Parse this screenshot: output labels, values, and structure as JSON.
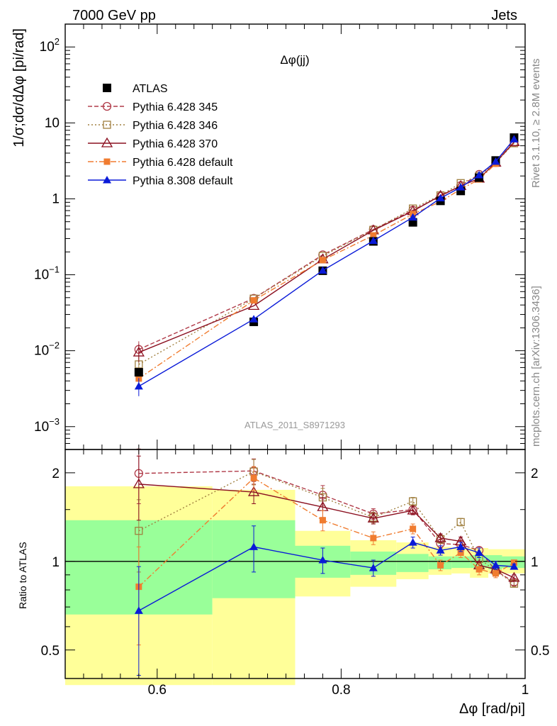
{
  "header": {
    "left": "7000 GeV pp",
    "right": "Jets"
  },
  "side_text": {
    "rivet": "Rivet 3.1.10, ≥ 2.8M events",
    "mcplots": "mcplots.cern.ch [arXiv:1306.3436]"
  },
  "colors": {
    "data": "#000000",
    "p345": "#b03a48",
    "p346": "#a08040",
    "p370": "#8b1020",
    "p6def": "#f07c30",
    "p8": "#0a1ad8",
    "band_green": "#99ff99",
    "band_yellow": "#ffff99"
  },
  "chart_data": [
    {
      "type": "line",
      "title": "Δφ(jj)",
      "watermark": "ATLAS_2011_S8971293",
      "xlabel": "",
      "ylabel": "1/σ;dσ/dΔφ [pi/rad]",
      "xlim": [
        0.5,
        1.0
      ],
      "ylim": [
        0.0005,
        200
      ],
      "yscale": "log",
      "y_ticks": [
        {
          "v": 0.001,
          "base": "10",
          "exp": "−3"
        },
        {
          "v": 0.01,
          "base": "10",
          "exp": "−2"
        },
        {
          "v": 0.1,
          "base": "10",
          "exp": "−1"
        },
        {
          "v": 1,
          "base": "1",
          "exp": ""
        },
        {
          "v": 10,
          "base": "10",
          "exp": ""
        },
        {
          "v": 100,
          "base": "10",
          "exp": "2"
        }
      ],
      "legend_position": "top-left",
      "x": [
        0.58,
        0.705,
        0.78,
        0.835,
        0.878,
        0.908,
        0.93,
        0.95,
        0.968,
        0.988
      ],
      "series": [
        {
          "name": "ATLAS",
          "key": "data",
          "marker": "filled-square",
          "dash": "",
          "values": [
            0.0052,
            0.024,
            0.113,
            0.275,
            0.49,
            0.94,
            1.27,
            1.9,
            3.2,
            6.4
          ]
        },
        {
          "name": "Pythia 6.428 345",
          "key": "p345",
          "marker": "open-circle",
          "dash": "6,3",
          "values": [
            0.0104,
            0.049,
            0.183,
            0.395,
            0.71,
            1.08,
            1.5,
            2.1,
            3.0,
            5.5
          ]
        },
        {
          "name": "Pythia 6.428 346",
          "key": "p346",
          "marker": "open-square",
          "dash": "2,3",
          "values": [
            0.0066,
            0.0485,
            0.177,
            0.39,
            0.745,
            1.11,
            1.61,
            2.0,
            3.0,
            5.4
          ]
        },
        {
          "name": "Pythia 6.428 370",
          "key": "p370",
          "marker": "open-triangle",
          "dash": "",
          "values": [
            0.0095,
            0.039,
            0.16,
            0.385,
            0.69,
            1.1,
            1.48,
            1.85,
            3.0,
            5.6
          ]
        },
        {
          "name": "Pythia 6.428 default",
          "key": "p6def",
          "marker": "filled-square-small",
          "dash": "8,3,2,3",
          "values": [
            0.0043,
            0.046,
            0.156,
            0.33,
            0.63,
            0.92,
            1.34,
            1.8,
            2.9,
            6.3
          ]
        },
        {
          "name": "Pythia 8.308 default",
          "key": "p8",
          "marker": "filled-triangle",
          "dash": "",
          "values": [
            0.0034,
            0.026,
            0.114,
            0.28,
            0.57,
            1.02,
            1.42,
            2.05,
            3.1,
            6.1
          ]
        }
      ]
    },
    {
      "type": "line",
      "xlabel": "Δφ [rad/pi]",
      "ylabel": "Ratio to ATLAS",
      "xlim": [
        0.5,
        1.0
      ],
      "ylim": [
        0.4,
        2.4
      ],
      "yscale": "log",
      "x_ticks": [
        0.6,
        0.8,
        1
      ],
      "x_tick_labels": [
        "0.6",
        "0.8",
        "1"
      ],
      "y_ticks": [
        0.5,
        1,
        2
      ],
      "y_tick_labels": [
        "0.5",
        "1",
        "2"
      ],
      "x": [
        0.58,
        0.705,
        0.78,
        0.835,
        0.878,
        0.908,
        0.93,
        0.95,
        0.968,
        0.988
      ],
      "bins": [
        [
          0.5,
          0.66
        ],
        [
          0.66,
          0.75
        ],
        [
          0.75,
          0.81
        ],
        [
          0.81,
          0.86
        ],
        [
          0.86,
          0.895
        ],
        [
          0.895,
          0.92
        ],
        [
          0.92,
          0.94
        ],
        [
          0.94,
          0.96
        ],
        [
          0.96,
          0.975
        ],
        [
          0.975,
          1.0
        ]
      ],
      "band_1sigma": [
        [
          0.66,
          1.38
        ],
        [
          0.75,
          1.38
        ],
        [
          0.88,
          1.13
        ],
        [
          0.9,
          1.08
        ],
        [
          0.92,
          1.06
        ],
        [
          0.94,
          1.04
        ],
        [
          0.95,
          1.04
        ],
        [
          0.95,
          1.05
        ],
        [
          0.94,
          1.05
        ],
        [
          0.95,
          1.04
        ]
      ],
      "band_2sigma": [
        [
          0.38,
          1.8
        ],
        [
          0.38,
          1.75
        ],
        [
          0.76,
          1.27
        ],
        [
          0.82,
          1.18
        ],
        [
          0.87,
          1.16
        ],
        [
          0.9,
          1.12
        ],
        [
          0.91,
          1.11
        ],
        [
          0.88,
          1.11
        ],
        [
          0.91,
          1.1
        ],
        [
          0.91,
          1.1
        ]
      ],
      "series": [
        {
          "key": "p345",
          "marker": "open-circle",
          "dash": "6,3",
          "values": [
            1.99,
            2.03,
            1.68,
            1.45,
            1.5,
            1.15,
            1.14,
            1.09,
            0.93,
            0.85
          ],
          "err": [
            0.42,
            0.2,
            0.13,
            0.06,
            0.05,
            0.04,
            0.04,
            0.03,
            0.03,
            0.02
          ]
        },
        {
          "key": "p346",
          "marker": "open-square",
          "dash": "2,3",
          "values": [
            1.27,
            2.02,
            1.65,
            1.41,
            1.6,
            1.19,
            1.36,
            1.02,
            0.93,
            0.84
          ],
          "err": [
            0.35,
            0.2,
            0.12,
            0.06,
            0.05,
            0.04,
            0.04,
            0.03,
            0.03,
            0.02
          ]
        },
        {
          "key": "p370",
          "marker": "open-triangle",
          "dash": "",
          "values": [
            1.83,
            1.72,
            1.53,
            1.4,
            1.49,
            1.2,
            1.17,
            0.97,
            0.94,
            0.88
          ],
          "err": [
            0.45,
            0.15,
            0.12,
            0.06,
            0.05,
            0.04,
            0.04,
            0.03,
            0.03,
            0.02
          ]
        },
        {
          "key": "p6def",
          "marker": "filled-square-small",
          "dash": "8,3,2,3",
          "values": [
            0.82,
            1.92,
            1.38,
            1.2,
            1.29,
            0.97,
            1.07,
            0.94,
            0.91,
            0.99
          ],
          "err": [
            0.3,
            0.18,
            0.11,
            0.06,
            0.05,
            0.04,
            0.04,
            0.04,
            0.03,
            0.02
          ]
        },
        {
          "key": "p8",
          "marker": "filled-triangle",
          "dash": "",
          "values": [
            0.68,
            1.12,
            1.01,
            0.95,
            1.16,
            1.09,
            1.12,
            1.07,
            0.97,
            0.96
          ],
          "err": [
            0.28,
            0.2,
            0.1,
            0.06,
            0.05,
            0.04,
            0.04,
            0.04,
            0.03,
            0.02
          ]
        }
      ]
    }
  ]
}
